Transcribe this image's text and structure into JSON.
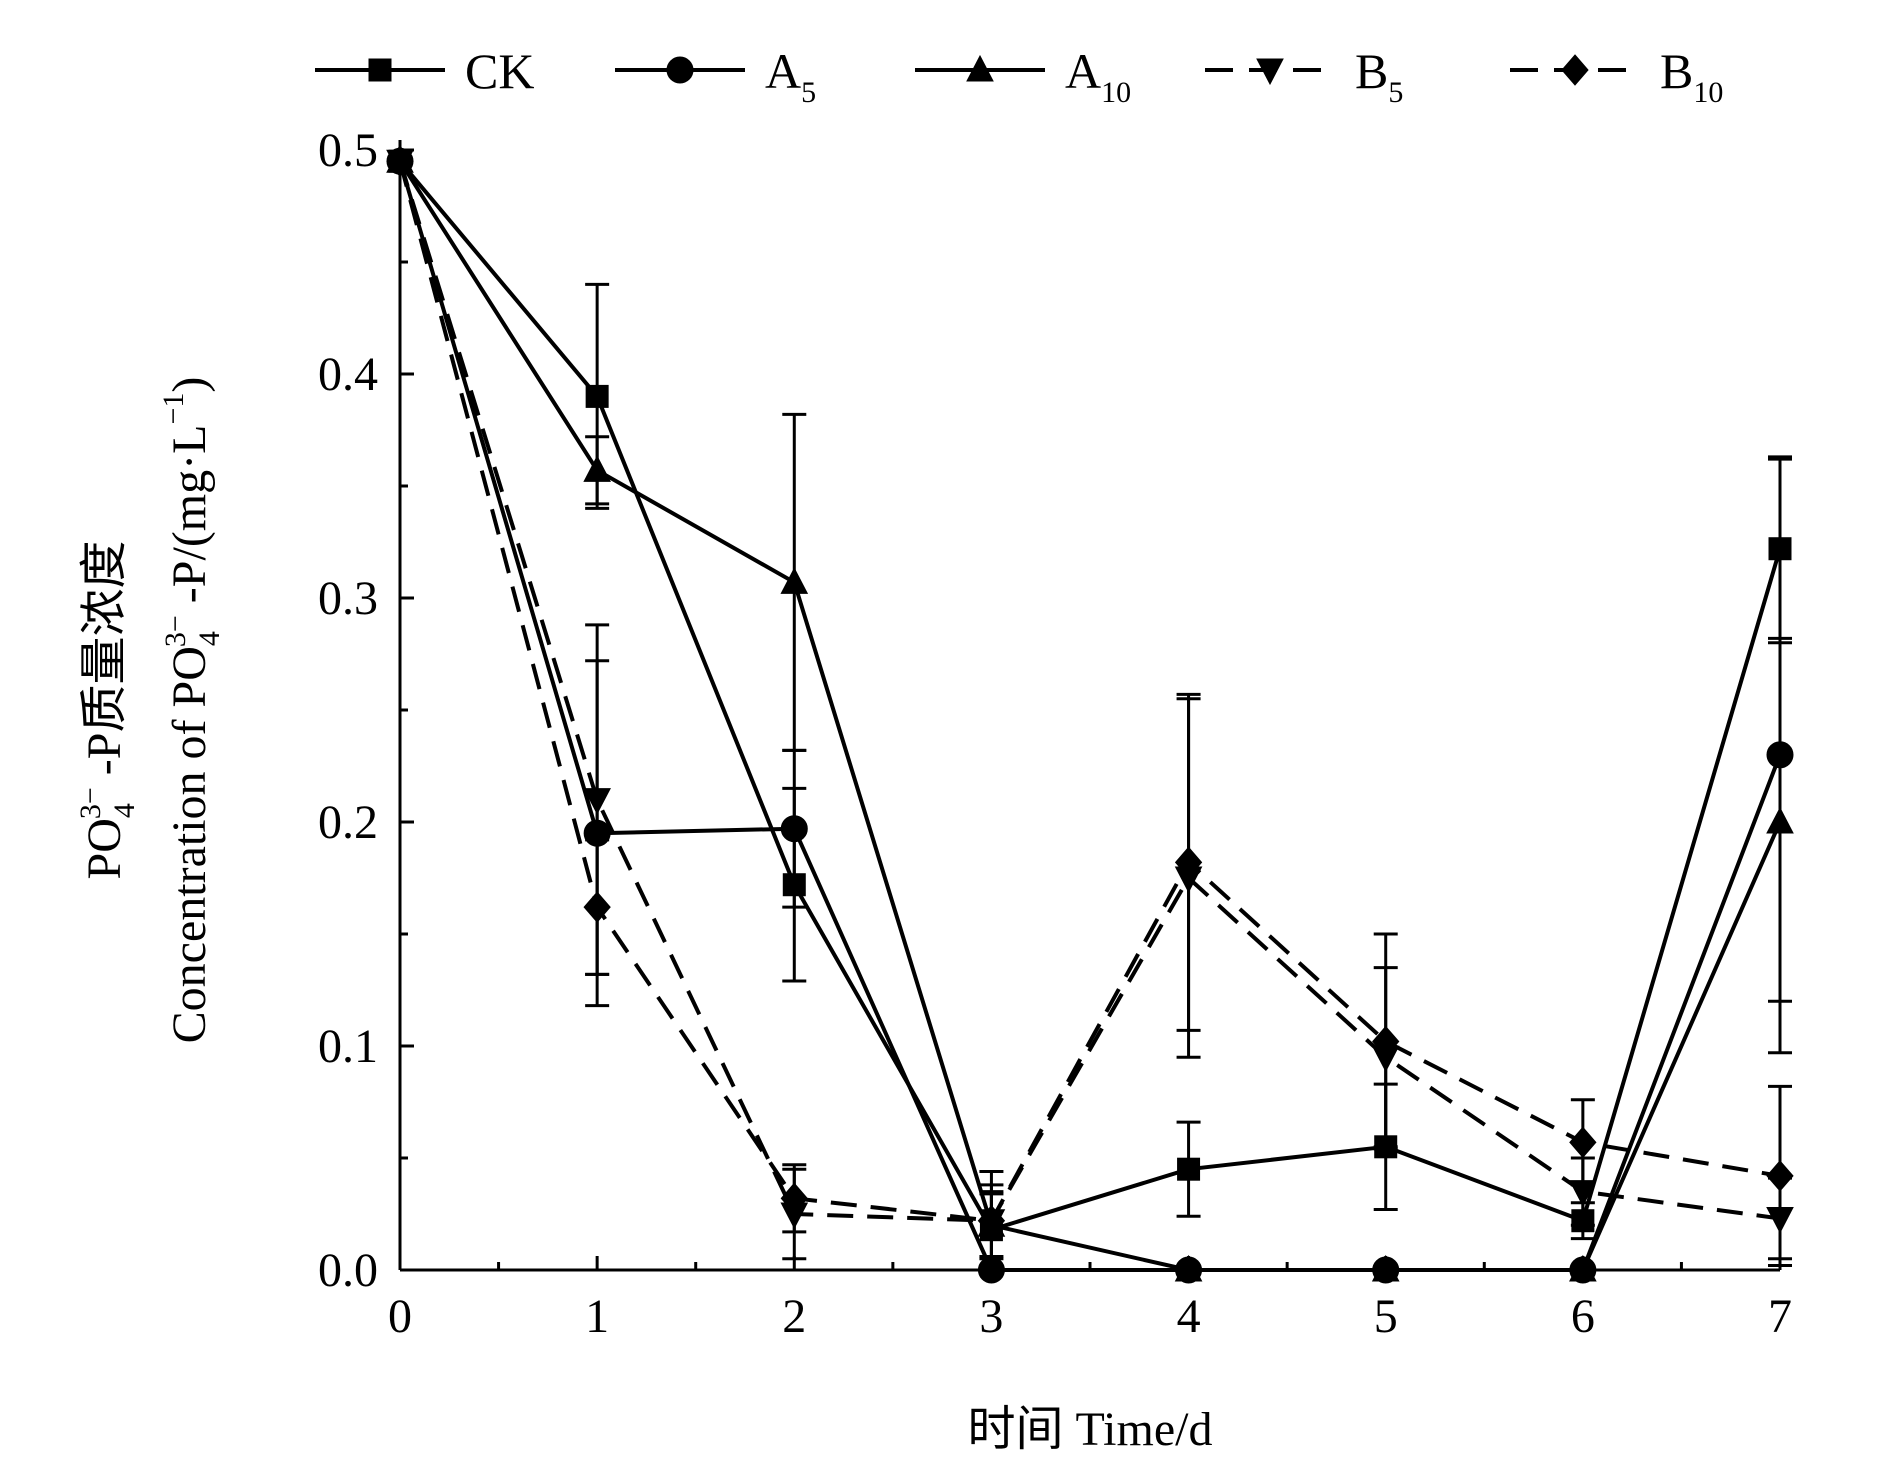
{
  "chart_data": {
    "type": "line",
    "xlabel": "时间 Time/d",
    "ylabel_line1": [
      "PO",
      "4",
      "3−",
      " -P质量浓度"
    ],
    "ylabel_line2": [
      "Concentration of PO",
      "4",
      "3−",
      " -P/(mg·L",
      "−1",
      ")"
    ],
    "xlim": [
      0,
      7
    ],
    "ylim": [
      0,
      0.5
    ],
    "x": [
      0,
      1,
      2,
      3,
      4,
      5,
      6,
      7
    ],
    "x_ticks": [
      "0",
      "1",
      "2",
      "3",
      "4",
      "5",
      "6",
      "7"
    ],
    "y_ticks": [
      "0.0",
      "0.1",
      "0.2",
      "0.3",
      "0.4",
      "0.5"
    ],
    "legend_position": "top",
    "series": [
      {
        "name": "CK",
        "legend_base": "CK",
        "legend_sub": "",
        "marker": "square",
        "dashed": false,
        "values": [
          0.495,
          0.39,
          0.172,
          0.018,
          0.045,
          0.055,
          0.022,
          0.322
        ],
        "errors": [
          0.0,
          0.05,
          0.043,
          0.016,
          0.021,
          0.028,
          0.008,
          0.04
        ]
      },
      {
        "name": "A5",
        "legend_base": "A",
        "legend_sub": "5",
        "marker": "circle",
        "dashed": false,
        "values": [
          0.495,
          0.195,
          0.197,
          0.0,
          0.0,
          0.0,
          0.0,
          0.23
        ],
        "errors": [
          0.0,
          0.077,
          0.035,
          0.0,
          0.0,
          0.0,
          0.0,
          0.133
        ]
      },
      {
        "name": "A10",
        "legend_base": "A",
        "legend_sub": "10",
        "marker": "triangle-up",
        "dashed": false,
        "values": [
          0.495,
          0.357,
          0.307,
          0.02,
          0.0,
          0.0,
          0.0,
          0.2
        ],
        "errors": [
          0.0,
          0.015,
          0.075,
          0.015,
          0.0,
          0.0,
          0.0,
          0.08
        ]
      },
      {
        "name": "B5",
        "legend_base": "B",
        "legend_sub": "5",
        "marker": "triangle-down",
        "dashed": true,
        "values": [
          0.495,
          0.21,
          0.025,
          0.022,
          0.175,
          0.095,
          0.035,
          0.023
        ],
        "errors": [
          0.0,
          0.078,
          0.02,
          0.022,
          0.08,
          0.04,
          0.015,
          0.018
        ]
      },
      {
        "name": "B10",
        "legend_base": "B",
        "legend_sub": "10",
        "marker": "diamond",
        "dashed": true,
        "values": [
          0.495,
          0.162,
          0.032,
          0.022,
          0.182,
          0.102,
          0.057,
          0.042
        ],
        "errors": [
          0.0,
          0.03,
          0.015,
          0.016,
          0.075,
          0.048,
          0.019,
          0.04
        ]
      }
    ]
  }
}
